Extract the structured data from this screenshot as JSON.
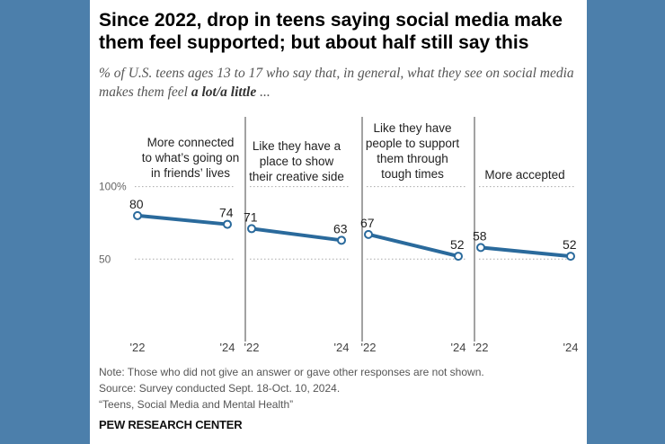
{
  "title": "Since 2022, drop in teens saying social media make them feel supported; but about half still say this",
  "subtitle_pre": "% of U.S. teens ages 13 to 17 who say that, in general, what they see on social media makes them feel ",
  "subtitle_bold": "a lot/a little",
  "subtitle_post": " ...",
  "colors": {
    "line": "#2a6a9c",
    "background": "#4c7fab"
  },
  "chart_data": {
    "type": "line",
    "x": [
      "'22",
      "'24"
    ],
    "ylim": [
      0,
      100
    ],
    "y_ticks": [
      {
        "value": 100,
        "label": "100%"
      },
      {
        "value": 50,
        "label": "50"
      }
    ],
    "grid": "dotted at 100 and 50",
    "panels": [
      {
        "title": "More connected\nto what’s going on\nin friends’ lives",
        "values": [
          80,
          74
        ]
      },
      {
        "title": "Like they have a\nplace to show\ntheir creative side",
        "values": [
          71,
          63
        ]
      },
      {
        "title": "Like they have\npeople to support\nthem through\ntough times",
        "values": [
          67,
          52
        ]
      },
      {
        "title": "More accepted",
        "values": [
          58,
          52
        ]
      }
    ]
  },
  "notes": {
    "note": "Note: Those who did not give an answer or gave other responses are not shown.",
    "source": "Source: Survey conducted Sept. 18-Oct. 10, 2024.",
    "report": "“Teens, Social Media and Mental Health”"
  },
  "brand": "PEW RESEARCH CENTER"
}
